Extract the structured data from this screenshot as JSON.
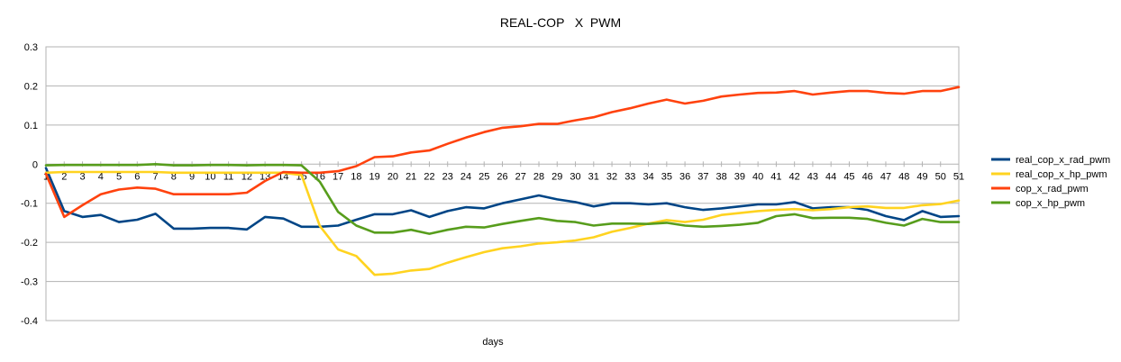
{
  "chart_data": {
    "type": "line",
    "title": "REAL-COP   X  PWM",
    "xlabel": "days",
    "ylabel": "",
    "ylim": [
      -0.4,
      0.3
    ],
    "yticks": [
      0.3,
      0.2,
      0.1,
      0,
      -0.1,
      -0.2,
      -0.3,
      -0.4
    ],
    "ytick_labels": [
      "0.3",
      "0.2",
      "0.1",
      "0",
      "-0.1",
      "-0.2",
      "-0.3",
      "-0.4"
    ],
    "x": [
      1,
      2,
      3,
      4,
      5,
      6,
      7,
      8,
      9,
      10,
      11,
      12,
      13,
      14,
      15,
      16,
      17,
      18,
      19,
      20,
      21,
      22,
      23,
      24,
      25,
      26,
      27,
      28,
      29,
      30,
      31,
      32,
      33,
      34,
      35,
      36,
      37,
      38,
      39,
      40,
      41,
      42,
      43,
      44,
      45,
      46,
      47,
      48,
      49,
      50,
      51
    ],
    "grid": "horizontal",
    "legend": "right",
    "series": [
      {
        "name": "real_cop_x_rad_pwm",
        "color": "#004586",
        "values": [
          -0.01,
          -0.12,
          -0.135,
          -0.13,
          -0.148,
          -0.142,
          -0.127,
          -0.165,
          -0.165,
          -0.163,
          -0.163,
          -0.167,
          -0.135,
          -0.139,
          -0.16,
          -0.16,
          -0.157,
          -0.142,
          -0.128,
          -0.128,
          -0.118,
          -0.135,
          -0.12,
          -0.11,
          -0.113,
          -0.1,
          -0.09,
          -0.08,
          -0.09,
          -0.097,
          -0.108,
          -0.1,
          -0.1,
          -0.103,
          -0.1,
          -0.11,
          -0.117,
          -0.113,
          -0.108,
          -0.103,
          -0.103,
          -0.097,
          -0.113,
          -0.11,
          -0.11,
          -0.117,
          -0.133,
          -0.143,
          -0.12,
          -0.135,
          -0.133
        ]
      },
      {
        "name": "real_cop_x_hp_pwm",
        "color": "#ffd320",
        "values": [
          -0.022,
          -0.02,
          -0.02,
          -0.02,
          -0.02,
          -0.02,
          -0.02,
          -0.022,
          -0.022,
          -0.022,
          -0.022,
          -0.022,
          -0.022,
          -0.022,
          -0.028,
          -0.158,
          -0.218,
          -0.235,
          -0.283,
          -0.28,
          -0.272,
          -0.268,
          -0.252,
          -0.238,
          -0.225,
          -0.215,
          -0.21,
          -0.203,
          -0.2,
          -0.195,
          -0.187,
          -0.173,
          -0.163,
          -0.152,
          -0.143,
          -0.148,
          -0.142,
          -0.13,
          -0.125,
          -0.12,
          -0.117,
          -0.115,
          -0.118,
          -0.115,
          -0.11,
          -0.108,
          -0.112,
          -0.112,
          -0.105,
          -0.102,
          -0.093
        ]
      },
      {
        "name": "cop_x_rad_pwm",
        "color": "#ff420e",
        "values": [
          -0.025,
          -0.135,
          -0.105,
          -0.077,
          -0.065,
          -0.06,
          -0.063,
          -0.077,
          -0.077,
          -0.077,
          -0.077,
          -0.073,
          -0.043,
          -0.02,
          -0.022,
          -0.022,
          -0.018,
          -0.005,
          0.018,
          0.02,
          0.03,
          0.035,
          0.052,
          0.068,
          0.082,
          0.093,
          0.097,
          0.103,
          0.103,
          0.112,
          0.12,
          0.133,
          0.143,
          0.155,
          0.165,
          0.155,
          0.162,
          0.173,
          0.178,
          0.182,
          0.183,
          0.187,
          0.178,
          0.183,
          0.187,
          0.187,
          0.182,
          0.18,
          0.187,
          0.187,
          0.197
        ]
      },
      {
        "name": "cop_x_hp_pwm",
        "color": "#579d1c",
        "values": [
          -0.003,
          -0.002,
          -0.002,
          -0.002,
          -0.002,
          -0.002,
          0.0,
          -0.003,
          -0.003,
          -0.002,
          -0.002,
          -0.003,
          -0.002,
          -0.002,
          -0.003,
          -0.045,
          -0.122,
          -0.157,
          -0.175,
          -0.175,
          -0.168,
          -0.178,
          -0.168,
          -0.16,
          -0.162,
          -0.153,
          -0.145,
          -0.138,
          -0.145,
          -0.148,
          -0.157,
          -0.152,
          -0.152,
          -0.153,
          -0.15,
          -0.157,
          -0.16,
          -0.158,
          -0.155,
          -0.15,
          -0.133,
          -0.128,
          -0.138,
          -0.137,
          -0.137,
          -0.14,
          -0.15,
          -0.157,
          -0.14,
          -0.148,
          -0.148
        ]
      }
    ]
  }
}
